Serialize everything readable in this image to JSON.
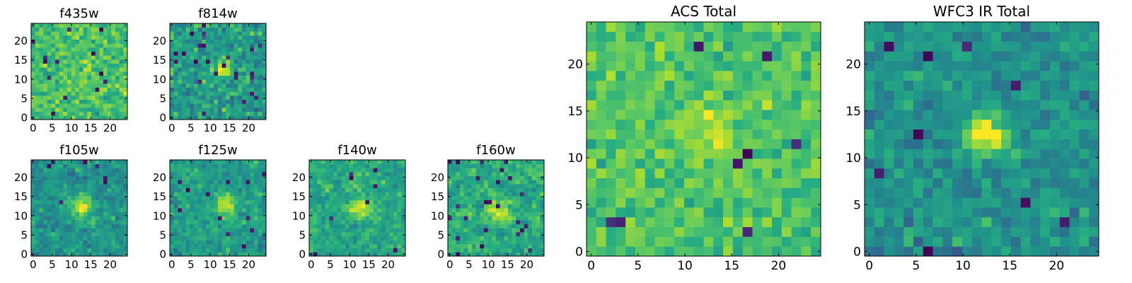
{
  "figure": {
    "colormap": "viridis",
    "colors": [
      "#440154",
      "#3b528b",
      "#21918c",
      "#5ec962",
      "#fde725"
    ]
  },
  "chart_data": [
    {
      "type": "heatmap",
      "title": "f435w",
      "xticks": [
        0,
        5,
        10,
        15,
        20
      ],
      "yticks": [
        0,
        5,
        10,
        15,
        20
      ],
      "xlim": [
        0,
        24
      ],
      "ylim": [
        0,
        24
      ],
      "shape": [
        24,
        24
      ],
      "seed": 11,
      "profile": {
        "mean": 0.7,
        "noise": 0.16,
        "blob_center": [
          12,
          12
        ],
        "blob_amp": 0.05,
        "blob_sigma": 2.5,
        "outlier_rate": 0.02,
        "smooth": 0
      }
    },
    {
      "type": "heatmap",
      "title": "f814w",
      "xticks": [
        0,
        5,
        10,
        15,
        20
      ],
      "yticks": [
        0,
        5,
        10,
        15,
        20
      ],
      "xlim": [
        0,
        24
      ],
      "ylim": [
        0,
        24
      ],
      "shape": [
        24,
        24
      ],
      "seed": 23,
      "profile": {
        "mean": 0.55,
        "noise": 0.18,
        "blob_center": [
          12.5,
          12
        ],
        "blob_amp": 0.35,
        "blob_sigma": 1.6,
        "outlier_rate": 0.05,
        "smooth": 0
      }
    },
    {
      "type": "heatmap",
      "title": "f105w",
      "xticks": [
        0,
        5,
        10,
        15,
        20
      ],
      "yticks": [
        0,
        5,
        10,
        15,
        20
      ],
      "xlim": [
        0,
        24
      ],
      "ylim": [
        0,
        24
      ],
      "shape": [
        24,
        24
      ],
      "seed": 37,
      "profile": {
        "mean": 0.52,
        "noise": 0.18,
        "blob_center": [
          12,
          12
        ],
        "blob_amp": 0.4,
        "blob_sigma": 2.0,
        "outlier_rate": 0.02,
        "smooth": 1
      }
    },
    {
      "type": "heatmap",
      "title": "f125w",
      "xticks": [
        0,
        5,
        10,
        15,
        20
      ],
      "yticks": [
        0,
        5,
        10,
        15,
        20
      ],
      "xlim": [
        0,
        24
      ],
      "ylim": [
        0,
        24
      ],
      "shape": [
        24,
        24
      ],
      "seed": 41,
      "profile": {
        "mean": 0.55,
        "noise": 0.18,
        "blob_center": [
          13,
          12
        ],
        "blob_amp": 0.4,
        "blob_sigma": 2.0,
        "outlier_rate": 0.03,
        "smooth": 1
      }
    },
    {
      "type": "heatmap",
      "title": "f140w",
      "xticks": [
        0,
        5,
        10,
        15,
        20
      ],
      "yticks": [
        0,
        5,
        10,
        15,
        20
      ],
      "xlim": [
        0,
        24
      ],
      "ylim": [
        0,
        24
      ],
      "shape": [
        24,
        24
      ],
      "seed": 53,
      "profile": {
        "mean": 0.6,
        "noise": 0.17,
        "blob_center": [
          12.5,
          11.5
        ],
        "blob_amp": 0.35,
        "blob_sigma": 2.0,
        "outlier_rate": 0.02,
        "smooth": 1
      }
    },
    {
      "type": "heatmap",
      "title": "f160w",
      "xticks": [
        0,
        5,
        10,
        15,
        20
      ],
      "yticks": [
        0,
        5,
        10,
        15,
        20
      ],
      "xlim": [
        0,
        24
      ],
      "ylim": [
        0,
        24
      ],
      "shape": [
        24,
        24
      ],
      "seed": 67,
      "profile": {
        "mean": 0.62,
        "noise": 0.18,
        "blob_center": [
          12,
          11
        ],
        "blob_amp": 0.35,
        "blob_sigma": 2.0,
        "outlier_rate": 0.04,
        "smooth": 1
      }
    },
    {
      "type": "heatmap",
      "title": "ACS Total",
      "xticks": [
        0,
        5,
        10,
        15,
        20
      ],
      "yticks": [
        0,
        5,
        10,
        15,
        20
      ],
      "xlim": [
        0,
        24
      ],
      "ylim": [
        0,
        24
      ],
      "shape": [
        24,
        24
      ],
      "seed": 79,
      "profile": {
        "mean": 0.72,
        "noise": 0.14,
        "blob_center": [
          12.5,
          12.5
        ],
        "blob_amp": 0.12,
        "blob_sigma": 2.5,
        "outlier_rate": 0.015,
        "smooth": 0
      }
    },
    {
      "type": "heatmap",
      "title": "WFC3 IR Total",
      "xticks": [
        0,
        5,
        10,
        15,
        20
      ],
      "yticks": [
        0,
        5,
        10,
        15,
        20
      ],
      "xlim": [
        0,
        24
      ],
      "ylim": [
        0,
        24
      ],
      "shape": [
        24,
        24
      ],
      "seed": 97,
      "profile": {
        "mean": 0.5,
        "noise": 0.14,
        "blob_center": [
          12,
          12
        ],
        "blob_amp": 0.55,
        "blob_sigma": 1.5,
        "outlier_rate": 0.03,
        "smooth": 0
      }
    }
  ]
}
